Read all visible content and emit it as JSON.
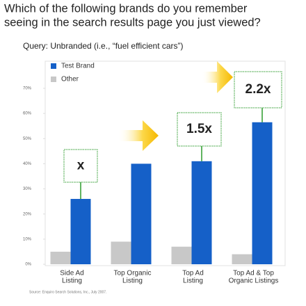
{
  "chart_data": {
    "type": "bar",
    "title": [
      "Which of the following brands do you remember",
      "seeing in the search results page you just viewed?"
    ],
    "subtitle": "Query: Unbranded (i.e., “fuel efficient cars”)",
    "categories": [
      [
        "Side Ad",
        "Listing"
      ],
      [
        "Top Organic",
        "Listing"
      ],
      [
        "Top Ad",
        "Listing"
      ],
      [
        "Top Ad & Top",
        "Organic Listings"
      ]
    ],
    "series": [
      {
        "name": "Other",
        "color": "#c8c8c8",
        "values": [
          5,
          9,
          7,
          4
        ]
      },
      {
        "name": "Test Brand",
        "color": "#1560c8",
        "values": [
          26,
          40,
          41,
          56.5
        ]
      }
    ],
    "annotations": [
      "x",
      null,
      "1.5x",
      "2.2x"
    ],
    "ylim": [
      0,
      70
    ],
    "yticks": [
      {
        "value": 0,
        "label": "0%"
      },
      {
        "value": 10,
        "label": "10%"
      },
      {
        "value": 20,
        "label": "20%"
      },
      {
        "value": 30,
        "label": "30%"
      },
      {
        "value": 40,
        "label": "40%"
      },
      {
        "value": 50,
        "label": "50%"
      },
      {
        "value": 60,
        "label": "60%"
      },
      {
        "value": 70,
        "label": "70%"
      }
    ],
    "legend": "upper left",
    "source": "Source: Enquiro Search Solutions, Inc., July 2007."
  }
}
